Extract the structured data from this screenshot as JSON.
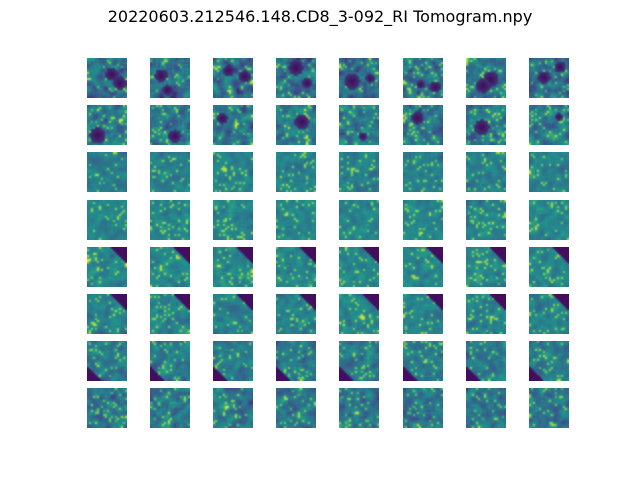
{
  "figure": {
    "title": "20220603.212546.148.CD8_3-092_RI Tomogram.npy"
  },
  "colormap": {
    "name": "viridis",
    "stops": [
      "#440154",
      "#3b528b",
      "#21918c",
      "#5ec962",
      "#fde725"
    ]
  },
  "montage": {
    "rows": 8,
    "cols": 8,
    "row_profiles": [
      {
        "mean": 0.38,
        "contrast": 0.34,
        "dark_blobs": 2,
        "corner": "none"
      },
      {
        "mean": 0.42,
        "contrast": 0.32,
        "dark_blobs": 1,
        "corner": "none"
      },
      {
        "mean": 0.44,
        "contrast": 0.18,
        "dark_blobs": 0,
        "corner": "none"
      },
      {
        "mean": 0.46,
        "contrast": 0.18,
        "dark_blobs": 0,
        "corner": "none"
      },
      {
        "mean": 0.47,
        "contrast": 0.2,
        "dark_blobs": 0,
        "corner": "bottom-right"
      },
      {
        "mean": 0.45,
        "contrast": 0.2,
        "dark_blobs": 0,
        "corner": "bottom-right"
      },
      {
        "mean": 0.42,
        "contrast": 0.24,
        "dark_blobs": 0,
        "corner": "bottom-left"
      },
      {
        "mean": 0.4,
        "contrast": 0.28,
        "dark_blobs": 0,
        "corner": "none"
      }
    ]
  }
}
